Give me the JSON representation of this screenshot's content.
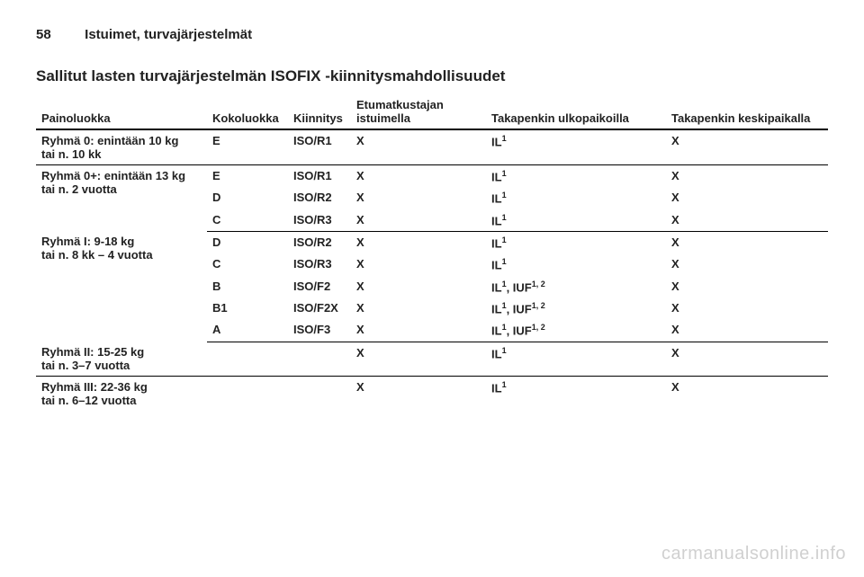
{
  "pageNumber": "58",
  "headerTitle": "Istuimet, turvajärjestelmät",
  "sectionTitle": "Sallitut lasten turvajärjestelmän ISOFIX -kiinnitysmahdollisuudet",
  "columns": {
    "weight": "Painoluokka",
    "size": "Kokoluokka",
    "fixture": "Kiinnitys",
    "front": "Etumatkustajan istuimella",
    "rearOuter": "Takapenkin ulkopaikoilla",
    "rearMiddle": "Takapenkin keskipaikalla"
  },
  "groups": [
    {
      "label": "Ryhmä 0: enintään 10 kg",
      "sub": "tai n. 10 kk",
      "rows": [
        {
          "size": "E",
          "fixture": "ISO/R1",
          "front": "X",
          "rearOuter": "IL¹",
          "rearMiddle": "X"
        }
      ]
    },
    {
      "label": "Ryhmä 0+: enintään 13 kg",
      "sub": "tai n. 2 vuotta",
      "rows": [
        {
          "size": "E",
          "fixture": "ISO/R1",
          "front": "X",
          "rearOuter": "IL¹",
          "rearMiddle": "X"
        },
        {
          "size": "D",
          "fixture": "ISO/R2",
          "front": "X",
          "rearOuter": "IL¹",
          "rearMiddle": "X"
        },
        {
          "size": "C",
          "fixture": "ISO/R3",
          "front": "X",
          "rearOuter": "IL¹",
          "rearMiddle": "X"
        }
      ]
    },
    {
      "label": "Ryhmä I: 9-18 kg",
      "sub": "tai n. 8 kk – 4 vuotta",
      "rows": [
        {
          "size": "D",
          "fixture": "ISO/R2",
          "front": "X",
          "rearOuter": "IL¹",
          "rearMiddle": "X"
        },
        {
          "size": "C",
          "fixture": "ISO/R3",
          "front": "X",
          "rearOuter": "IL¹",
          "rearMiddle": "X"
        },
        {
          "size": "B",
          "fixture": "ISO/F2",
          "front": "X",
          "rearOuter": "IL¹, IUF¹·²",
          "rearMiddle": "X"
        },
        {
          "size": "B1",
          "fixture": "ISO/F2X",
          "front": "X",
          "rearOuter": "IL¹, IUF¹·²",
          "rearMiddle": "X"
        },
        {
          "size": "A",
          "fixture": "ISO/F3",
          "front": "X",
          "rearOuter": "IL¹, IUF¹·²",
          "rearMiddle": "X"
        }
      ]
    },
    {
      "label": "Ryhmä II: 15-25 kg",
      "sub": "tai n. 3–7 vuotta",
      "rows": [
        {
          "size": "",
          "fixture": "",
          "front": "X",
          "rearOuter": "IL¹",
          "rearMiddle": "X"
        }
      ]
    },
    {
      "label": "Ryhmä III: 22-36 kg",
      "sub": "tai n. 6–12 vuotta",
      "rows": [
        {
          "size": "",
          "fixture": "",
          "front": "X",
          "rearOuter": "IL¹",
          "rearMiddle": "X"
        }
      ]
    }
  ],
  "watermark": "carmanualsonline.info"
}
